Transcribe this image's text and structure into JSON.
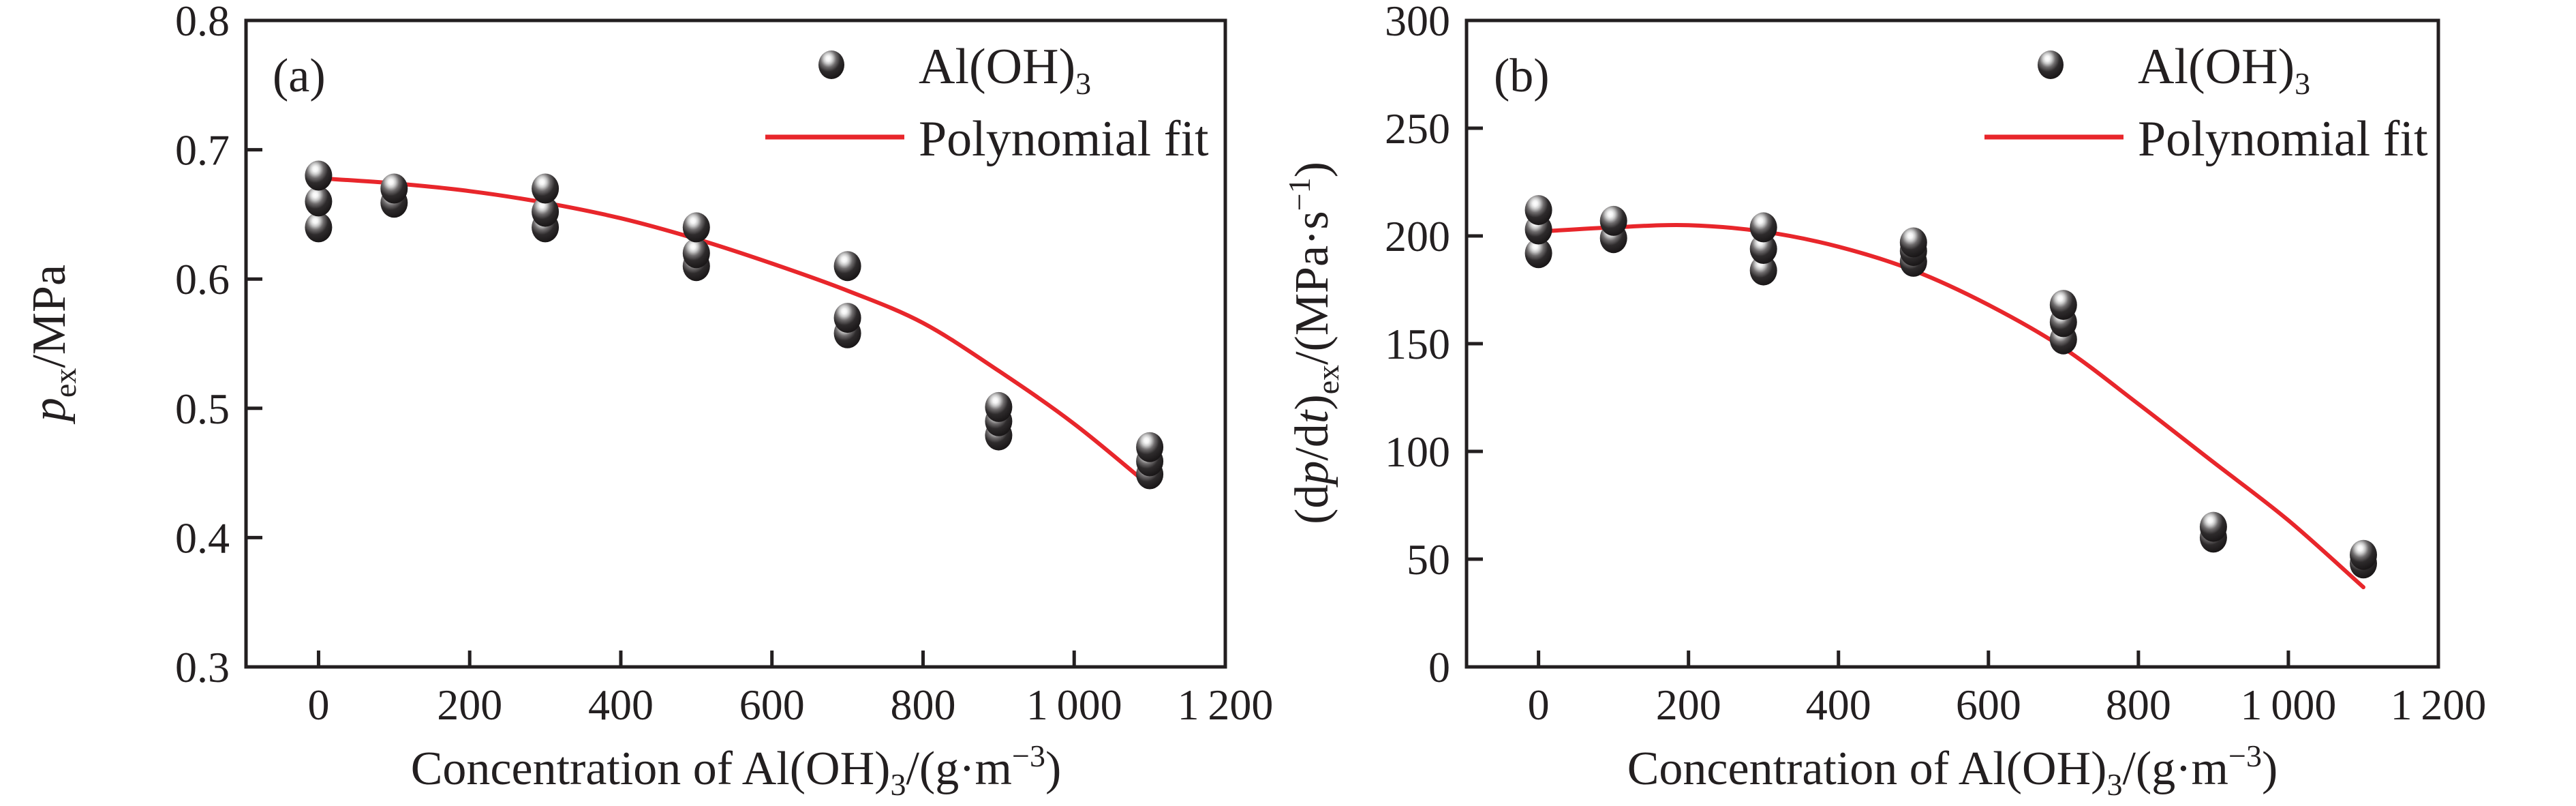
{
  "figure": {
    "background": "#ffffff",
    "ink_color": "#231f20",
    "fit_line_color": "#e8262b",
    "marker_color": "#1b1819"
  },
  "chart_data": [
    {
      "type": "scatter",
      "panel_label": "(a)",
      "title": "",
      "xlabel": "Concentration of Al(OH)3/(g·m−3)",
      "ylabel": "p ex /MPa",
      "xlabel_parts": {
        "prefix": "Concentration of Al(OH)",
        "sub": "3",
        "mid": "/(g·m",
        "sup": "−3",
        "suffix": ")"
      },
      "ylabel_parts": {
        "p": "p",
        "sub": "ex",
        "rest": "/MPa"
      },
      "legend": [
        {
          "label_main": "Al(OH)",
          "label_sub": "3",
          "marker": "sphere"
        },
        {
          "label": "Polynomial fit",
          "marker": "red-line"
        }
      ],
      "legend_position": "top-right-inside",
      "grid": false,
      "xlim": [
        -96,
        1200
      ],
      "ylim": [
        0.3,
        0.8
      ],
      "x_ticks": [
        0,
        200,
        400,
        600,
        800,
        1000,
        1200
      ],
      "x_tick_labels": [
        "0",
        "200",
        "400",
        "600",
        "800",
        "1 000",
        "1 200"
      ],
      "y_ticks": [
        0.3,
        0.4,
        0.5,
        0.6,
        0.7,
        0.8
      ],
      "y_tick_labels": [
        "0.3",
        "0.4",
        "0.5",
        "0.6",
        "0.7",
        "0.8"
      ],
      "scatter_groups": [
        {
          "x": 0,
          "values": [
            0.64,
            0.66,
            0.68
          ]
        },
        {
          "x": 100,
          "values": [
            0.659,
            0.67
          ]
        },
        {
          "x": 300,
          "values": [
            0.64,
            0.652,
            0.67
          ]
        },
        {
          "x": 500,
          "values": [
            0.61,
            0.62,
            0.64
          ]
        },
        {
          "x": 700,
          "values": [
            0.558,
            0.57,
            0.61
          ]
        },
        {
          "x": 900,
          "values": [
            0.479,
            0.49,
            0.501
          ]
        },
        {
          "x": 1100,
          "values": [
            0.449,
            0.459,
            0.47
          ]
        }
      ],
      "fit_curve": {
        "x": [
          0,
          100,
          200,
          300,
          400,
          500,
          600,
          700,
          800,
          900,
          1000,
          1100
        ],
        "y": [
          0.678,
          0.674,
          0.668,
          0.659,
          0.647,
          0.631,
          0.612,
          0.591,
          0.566,
          0.529,
          0.488,
          0.44
        ]
      }
    },
    {
      "type": "scatter",
      "panel_label": "(b)",
      "title": "",
      "xlabel": "Concentration of Al(OH)3/(g·m−3)",
      "ylabel": "(dp/dt)ex/(MPa·s−1)",
      "xlabel_parts": {
        "prefix": "Concentration of Al(OH)",
        "sub": "3",
        "mid": "/(g·m",
        "sup": "−3",
        "suffix": ")"
      },
      "ylabel_parts": {
        "p1": "(d",
        "p": "p",
        "p2": "/d",
        "t": "t",
        "p3": ")",
        "sub": "ex",
        "p4": "/(MPa·s",
        "sup": "−1",
        "p5": ")"
      },
      "legend": [
        {
          "label_main": "Al(OH)",
          "label_sub": "3",
          "marker": "sphere"
        },
        {
          "label": "Polynomial fit",
          "marker": "red-line"
        }
      ],
      "legend_position": "top-right-inside",
      "grid": false,
      "xlim": [
        -96,
        1200
      ],
      "ylim": [
        0,
        300
      ],
      "x_ticks": [
        0,
        200,
        400,
        600,
        800,
        1000,
        1200
      ],
      "x_tick_labels": [
        "0",
        "200",
        "400",
        "600",
        "800",
        "1 000",
        "1 200"
      ],
      "y_ticks": [
        0,
        50,
        100,
        150,
        200,
        250,
        300
      ],
      "y_tick_labels": [
        "0",
        "50",
        "100",
        "150",
        "200",
        "250",
        "300"
      ],
      "scatter_groups": [
        {
          "x": 0,
          "values": [
            192,
            203,
            212
          ]
        },
        {
          "x": 100,
          "values": [
            199,
            207
          ]
        },
        {
          "x": 300,
          "values": [
            184,
            194,
            204
          ]
        },
        {
          "x": 500,
          "values": [
            188,
            193,
            197
          ]
        },
        {
          "x": 700,
          "values": [
            152,
            160,
            168
          ]
        },
        {
          "x": 900,
          "values": [
            60,
            65
          ]
        },
        {
          "x": 1100,
          "values": [
            48,
            52
          ]
        }
      ],
      "fit_curve": {
        "x": [
          0,
          100,
          200,
          300,
          400,
          500,
          600,
          700,
          800,
          900,
          1000,
          1100
        ],
        "y": [
          202,
          204,
          205,
          202,
          195,
          184,
          168,
          148,
          122,
          95,
          68,
          37
        ]
      }
    }
  ]
}
